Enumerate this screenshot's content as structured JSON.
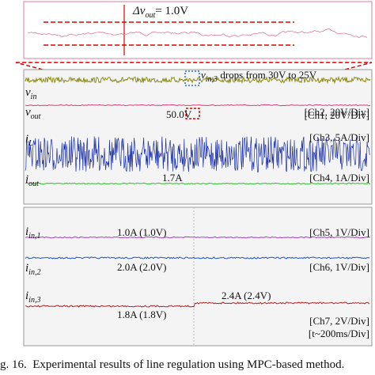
{
  "zoom": {
    "label": {
      "main": "Δv",
      "sub": "out",
      "rest": "= 1.0V"
    }
  },
  "annotation": {
    "main": "v",
    "sub": "in,3",
    "rest": " drops from 30V to 25V"
  },
  "channels": [
    {
      "name": {
        "main": "v",
        "sub": "in"
      },
      "scale": "[Ch1, 20V/Div]"
    },
    {
      "name": {
        "main": "v",
        "sub": "out"
      },
      "scale": "[Ch2, 20V/Div]",
      "reading": "50.0V"
    },
    {
      "name": {
        "main": "i",
        "sub": "L"
      },
      "scale": "[Ch3, 5A/Div]"
    },
    {
      "name": {
        "main": "i",
        "sub": "out"
      },
      "scale": "[Ch4, 1A/Div]",
      "reading": "1.7A"
    },
    {
      "name": {
        "main": "i",
        "sub": "in,1"
      },
      "scale": "[Ch5, 1V/Div]",
      "reading": "1.0A (1.0V)"
    },
    {
      "name": {
        "main": "i",
        "sub": "in,2"
      },
      "scale": "[Ch6, 1V/Div]",
      "reading": "2.0A (2.0V)"
    },
    {
      "name": {
        "main": "i",
        "sub": "in,3"
      },
      "scale": "[Ch7, 2V/Div]",
      "reading": "1.8A (1.8V)",
      "reading_after": "2.4A (2.4V)"
    }
  ],
  "timebase": "[t~200ms/Div]",
  "caption": "g. 16.  Experimental results of line regulation using MPC-based method."
}
